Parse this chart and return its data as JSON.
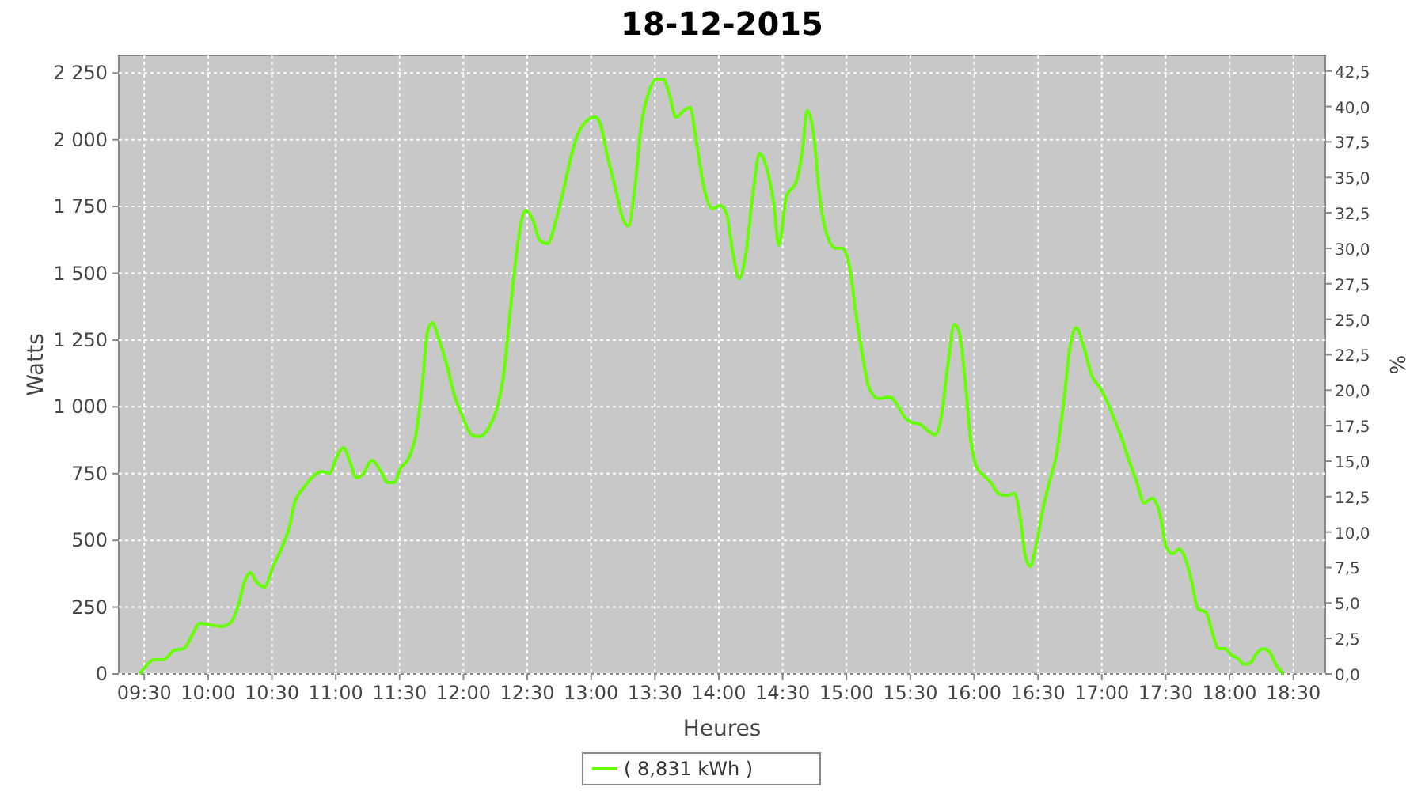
{
  "chart_data": {
    "type": "line",
    "title": "18-12-2015",
    "xlabel": "Heures",
    "ylabel": "Watts",
    "y2label": "%",
    "xlim": [
      9.3,
      18.75
    ],
    "ylim": [
      0,
      2316
    ],
    "y2lim": [
      0,
      43.6
    ],
    "xticks": [
      {
        "value": 9.5,
        "label": "09:30"
      },
      {
        "value": 10,
        "label": "10:00"
      },
      {
        "value": 10.5,
        "label": "10:30"
      },
      {
        "value": 11,
        "label": "11:00"
      },
      {
        "value": 11.5,
        "label": "11:30"
      },
      {
        "value": 12,
        "label": "12:00"
      },
      {
        "value": 12.5,
        "label": "12:30"
      },
      {
        "value": 13,
        "label": "13:00"
      },
      {
        "value": 13.5,
        "label": "13:30"
      },
      {
        "value": 14,
        "label": "14:00"
      },
      {
        "value": 14.5,
        "label": "14:30"
      },
      {
        "value": 15,
        "label": "15:00"
      },
      {
        "value": 15.5,
        "label": "15:30"
      },
      {
        "value": 16,
        "label": "16:00"
      },
      {
        "value": 16.5,
        "label": "16:30"
      },
      {
        "value": 17,
        "label": "17:00"
      },
      {
        "value": 17.5,
        "label": "17:30"
      },
      {
        "value": 18,
        "label": "18:00"
      },
      {
        "value": 18.5,
        "label": "18:30"
      }
    ],
    "yticks": [
      0,
      250,
      500,
      750,
      {
        "value": 1000,
        "label": "1 000"
      },
      {
        "value": 1250,
        "label": "1 250"
      },
      {
        "value": 1500,
        "label": "1 500"
      },
      {
        "value": 1750,
        "label": "1 750"
      },
      {
        "value": 2000,
        "label": "2 000"
      },
      {
        "value": 2250,
        "label": "2 250"
      }
    ],
    "y2ticks": [
      {
        "value": 0,
        "label": "0,0"
      },
      {
        "value": 2.5,
        "label": "2,5"
      },
      {
        "value": 5,
        "label": "5,0"
      },
      {
        "value": 7.5,
        "label": "7,5"
      },
      {
        "value": 10,
        "label": "10,0"
      },
      {
        "value": 12.5,
        "label": "12,5"
      },
      {
        "value": 15,
        "label": "15,0"
      },
      {
        "value": 17.5,
        "label": "17,5"
      },
      {
        "value": 20,
        "label": "20,0"
      },
      {
        "value": 22.5,
        "label": "22,5"
      },
      {
        "value": 25,
        "label": "25,0"
      },
      {
        "value": 27.5,
        "label": "27,5"
      },
      {
        "value": 30,
        "label": "30,0"
      },
      {
        "value": 32.5,
        "label": "32,5"
      },
      {
        "value": 35,
        "label": "35,0"
      },
      {
        "value": 37.5,
        "label": "37,5"
      },
      {
        "value": 40,
        "label": "40,0"
      },
      {
        "value": 42.5,
        "label": "42,5"
      }
    ],
    "grid": true,
    "legend": "bottom",
    "marker": "none",
    "line_style": "solid",
    "series": [
      {
        "name": "( 8,831 kWh )",
        "color": "#66ff00",
        "x": [
          9.463,
          9.525,
          9.574,
          9.649,
          9.735,
          9.81,
          9.884,
          9.934,
          10.008,
          10.107,
          10.182,
          10.231,
          10.293,
          10.33,
          10.38,
          10.442,
          10.504,
          10.578,
          10.64,
          10.677,
          10.752,
          10.813,
          10.888,
          10.95,
          11.012,
          11.061,
          11.111,
          11.16,
          11.21,
          11.284,
          11.346,
          11.408,
          11.458,
          11.507,
          11.569,
          11.631,
          11.681,
          11.718,
          11.755,
          11.805,
          11.867,
          11.929,
          11.991,
          12.065,
          12.127,
          12.201,
          12.263,
          12.313,
          12.362,
          12.424,
          12.486,
          12.548,
          12.598,
          12.66,
          12.722,
          12.784,
          12.846,
          12.895,
          12.957,
          13.032,
          13.069,
          13.131,
          13.193,
          13.242,
          13.292,
          13.341,
          13.391,
          13.453,
          13.515,
          13.564,
          13.614,
          13.664,
          13.726,
          13.775,
          13.825,
          13.887,
          13.949,
          14.011,
          14.06,
          14.11,
          14.159,
          14.209,
          14.271,
          14.32,
          14.37,
          14.432,
          14.469,
          14.531,
          14.605,
          14.655,
          14.692,
          14.742,
          14.791,
          14.853,
          14.915,
          14.965,
          15.027,
          15.076,
          15.126,
          15.176,
          15.25,
          15.337,
          15.399,
          15.448,
          15.51,
          15.572,
          15.634,
          15.696,
          15.745,
          15.795,
          15.844,
          15.882,
          15.931,
          15.968,
          16.018,
          16.068,
          16.13,
          16.191,
          16.253,
          16.315,
          16.365,
          16.402,
          16.439,
          16.489,
          16.538,
          16.588,
          16.638,
          16.7,
          16.749,
          16.799,
          16.861,
          16.923,
          16.985,
          17.047,
          17.096,
          17.146,
          17.208,
          17.27,
          17.332,
          17.394,
          17.455,
          17.505,
          17.555,
          17.604,
          17.654,
          17.704,
          17.753,
          17.815,
          17.865,
          17.915,
          17.964,
          18.014,
          18.064,
          18.113,
          18.163,
          18.213,
          18.262,
          18.312,
          18.362,
          18.422
        ],
        "values": [
          0,
          36,
          53,
          53,
          89,
          95,
          154,
          190,
          184,
          178,
          195,
          249,
          355,
          379,
          344,
          326,
          397,
          474,
          557,
          640,
          699,
          735,
          758,
          752,
          818,
          847,
          794,
          735,
          746,
          800,
          764,
          717,
          717,
          770,
          806,
          906,
          1102,
          1280,
          1315,
          1256,
          1161,
          1043,
          966,
          895,
          889,
          924,
          995,
          1114,
          1339,
          1605,
          1736,
          1694,
          1623,
          1611,
          1694,
          1813,
          1943,
          2020,
          2067,
          2085,
          2062,
          1931,
          1813,
          1712,
          1677,
          1813,
          2050,
          2180,
          2227,
          2227,
          2168,
          2085,
          2109,
          2121,
          1990,
          1813,
          1742,
          1754,
          1724,
          1576,
          1481,
          1564,
          1813,
          1949,
          1902,
          1754,
          1605,
          1789,
          1842,
          1961,
          2109,
          2020,
          1783,
          1635,
          1594,
          1594,
          1517,
          1339,
          1191,
          1072,
          1031,
          1037,
          1007,
          966,
          942,
          936,
          912,
          895,
          972,
          1161,
          1309,
          1280,
          1090,
          895,
          776,
          746,
          717,
          675,
          669,
          675,
          569,
          438,
          403,
          492,
          616,
          717,
          806,
          1013,
          1220,
          1297,
          1220,
          1114,
          1072,
          1013,
          954,
          895,
          806,
          723,
          640,
          658,
          598,
          474,
          450,
          468,
          432,
          344,
          243,
          231,
          154,
          95,
          95,
          71,
          59,
          36,
          41,
          77,
          95,
          83,
          36,
          0
        ]
      }
    ]
  }
}
